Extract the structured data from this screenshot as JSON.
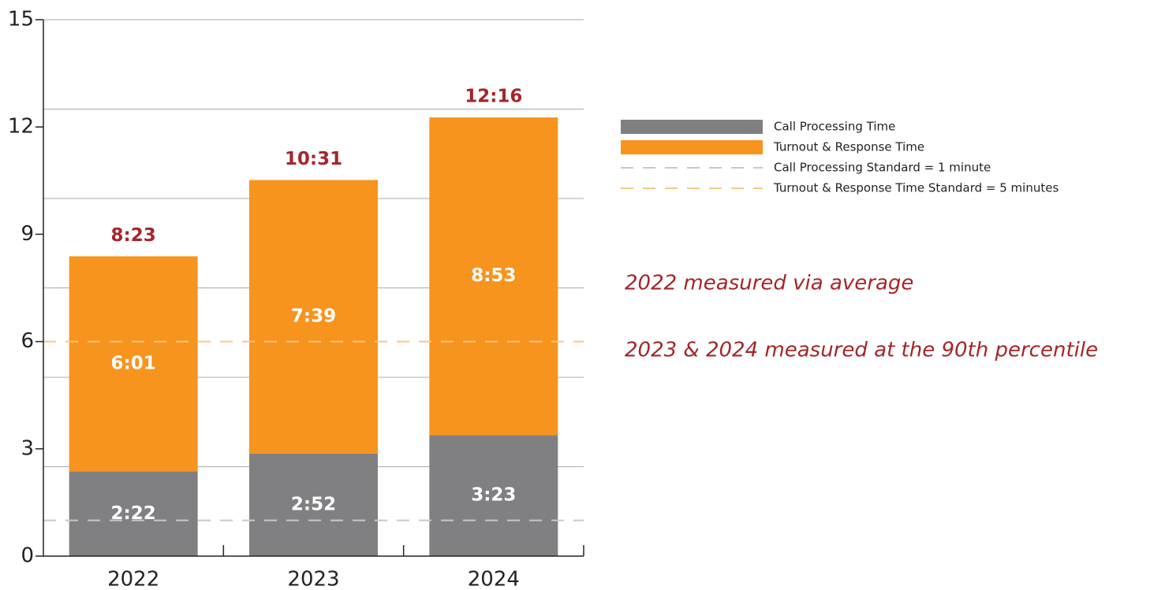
{
  "chart_data": {
    "type": "stacked_bar",
    "categories": [
      "2022",
      "2023",
      "2024"
    ],
    "series": [
      {
        "name": "Call Processing Time",
        "color": "#808083",
        "values": [
          2.3667,
          2.8667,
          3.3833
        ],
        "value_labels": [
          "2:22",
          "2:52",
          "3:23"
        ]
      },
      {
        "name": "Turnout & Response Time",
        "color": "#f7941d",
        "values": [
          6.0167,
          7.65,
          8.8833
        ],
        "value_labels": [
          "6:01",
          "7:39",
          "8:53"
        ]
      }
    ],
    "totals": [
      8.3833,
      10.5167,
      12.2667
    ],
    "total_labels": [
      "8:23",
      "10:31",
      "12:16"
    ],
    "reference_lines": [
      {
        "name": "Call Processing Standard = 1 minute",
        "value": 1,
        "color": "#c8c8c8"
      },
      {
        "name": "Turnout & Response Time Standard = 5 minutes",
        "value": 6,
        "color": "#fbc58a"
      }
    ],
    "ylim": [
      0,
      15
    ],
    "yticks": [
      0,
      3,
      6,
      9,
      12,
      15
    ],
    "grid_lines": [
      2.5,
      5,
      7.5,
      10,
      12.5,
      15
    ],
    "annotations": [
      "2022 measured via average",
      "2023 & 2024 measured at the 90th percentile"
    ]
  }
}
